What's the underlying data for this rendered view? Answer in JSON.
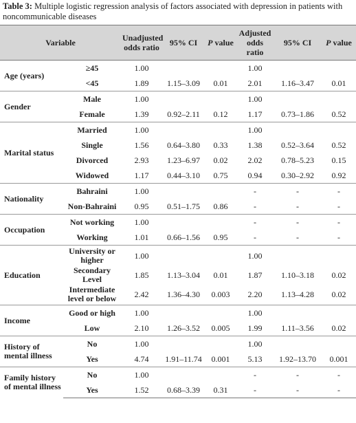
{
  "caption": {
    "label": "Table 3:",
    "text": "Multiple logistic regression analysis of factors associated with depression in patients with noncommunicable diseases"
  },
  "table": {
    "header": {
      "variable": "Variable",
      "unadjusted": "Unadjusted odds ratio",
      "ci1": "95% CI",
      "p1": {
        "italic": "P",
        "rest": "value"
      },
      "adjusted": "Adjusted odds ratio",
      "ci2": "95% CI",
      "p2": {
        "italic": "P",
        "rest": "value"
      }
    },
    "groups": [
      {
        "label": "Age (years)",
        "rows": [
          {
            "label": "≥45",
            "cells": [
              "1.00",
              null,
              null,
              "1.00",
              null,
              null
            ]
          },
          {
            "label": "<45",
            "cells": [
              "1.89",
              "1.15–3.09",
              "0.01",
              "2.01",
              "1.16–3.47",
              "0.01"
            ]
          }
        ]
      },
      {
        "label": "Gender",
        "rows": [
          {
            "label": "Male",
            "cells": [
              "1.00",
              null,
              null,
              "1.00",
              null,
              null
            ]
          },
          {
            "label": "Female",
            "cells": [
              "1.39",
              "0.92–2.11",
              "0.12",
              "1.17",
              "0.73–1.86",
              "0.52"
            ]
          }
        ]
      },
      {
        "label": "Marital status",
        "rows": [
          {
            "label": "Married",
            "cells": [
              "1.00",
              null,
              null,
              "1.00",
              null,
              null
            ]
          },
          {
            "label": "Single",
            "cells": [
              "1.56",
              "0.64–3.80",
              "0.33",
              "1.38",
              "0.52–3.64",
              "0.52"
            ]
          },
          {
            "label": "Divorced",
            "cells": [
              "2.93",
              "1.23–6.97",
              "0.02",
              "2.02",
              "0.78–5.23",
              "0.15"
            ]
          },
          {
            "label": "Widowed",
            "cells": [
              "1.17",
              "0.44–3.10",
              "0.75",
              "0.94",
              "0.30–2.92",
              "0.92"
            ]
          }
        ]
      },
      {
        "label": "Nationality",
        "rows": [
          {
            "label": "Bahraini",
            "cells": [
              "1.00",
              null,
              null,
              "-",
              "-",
              "-"
            ]
          },
          {
            "label": "Non-Bahraini",
            "cells": [
              "0.95",
              "0.51–1.75",
              "0.86",
              "-",
              "-",
              "-"
            ]
          }
        ]
      },
      {
        "label": "Occupation",
        "rows": [
          {
            "label": "Not working",
            "cells": [
              "1.00",
              null,
              null,
              "-",
              "-",
              "-"
            ]
          },
          {
            "label": "Working",
            "cells": [
              "1.01",
              "0.66–1.56",
              "0.95",
              "-",
              "-",
              "-"
            ]
          }
        ]
      },
      {
        "label": "Education",
        "rows": [
          {
            "label": "University or higher",
            "cells": [
              "1.00",
              null,
              null,
              "1.00",
              null,
              null
            ]
          },
          {
            "label": "Secondary Level",
            "cells": [
              "1.85",
              "1.13–3.04",
              "0.01",
              "1.87",
              "1.10–3.18",
              "0.02"
            ]
          },
          {
            "label": "Intermediate level or below",
            "cells": [
              "2.42",
              "1.36–4.30",
              "0.003",
              "2.20",
              "1.13–4.28",
              "0.02"
            ]
          }
        ]
      },
      {
        "label": "Income",
        "rows": [
          {
            "label": "Good or high",
            "cells": [
              "1.00",
              null,
              null,
              "1.00",
              null,
              null
            ]
          },
          {
            "label": "Low",
            "cells": [
              "2.10",
              "1.26–3.52",
              "0.005",
              "1.99",
              "1.11–3.56",
              "0.02"
            ]
          }
        ]
      },
      {
        "label": "History of mental illness",
        "rows": [
          {
            "label": "No",
            "cells": [
              "1.00",
              null,
              null,
              "1.00",
              null,
              null
            ]
          },
          {
            "label": "Yes",
            "cells": [
              "4.74",
              "1.91–11.74",
              "0.001",
              "5.13",
              "1.92–13.70",
              "0.001"
            ]
          }
        ]
      },
      {
        "label": "Family history of mental illness",
        "rows": [
          {
            "label": "No",
            "cells": [
              "1.00",
              null,
              null,
              "-",
              "-",
              "-"
            ]
          },
          {
            "label": "Yes",
            "cells": [
              "1.52",
              "0.68–3.39",
              "0.31",
              "-",
              "-",
              "-"
            ]
          }
        ]
      }
    ]
  }
}
